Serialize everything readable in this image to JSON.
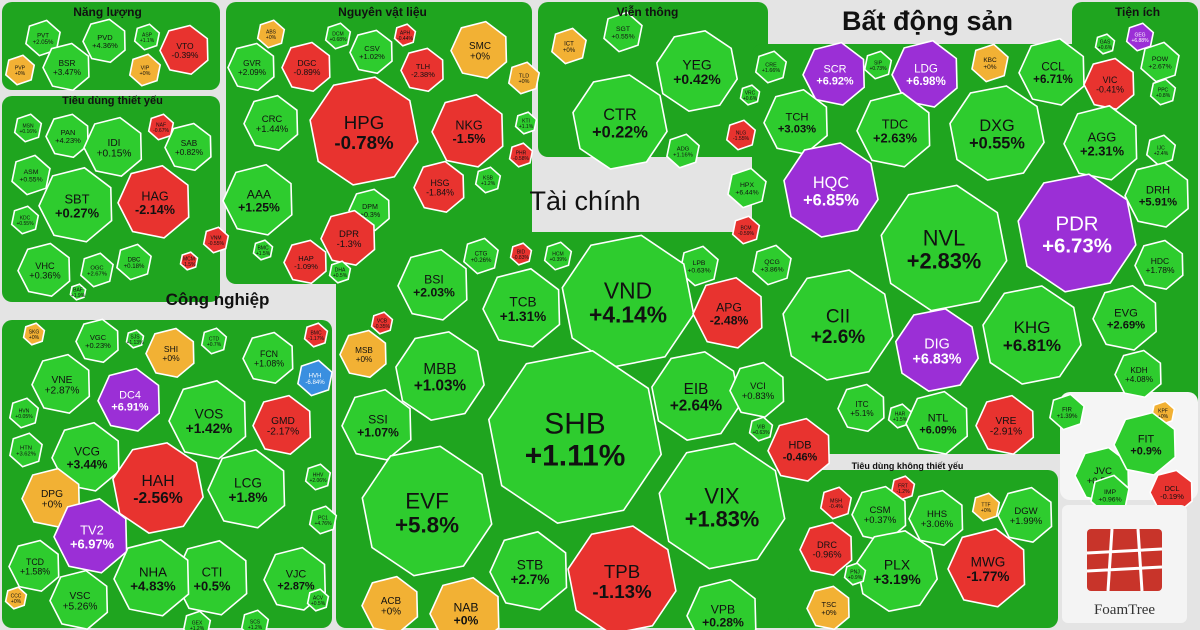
{
  "chart_data": {
    "type": "treemap",
    "title": "",
    "colors": {
      "up": "#2ecc2e",
      "down": "#e8332f",
      "flat": "#f2b134",
      "ceiling": "#9b2fd6",
      "floor": "#3a8fe0"
    },
    "sectors": [
      {
        "name": "Năng lượng",
        "stocks": [
          {
            "ticker": "PVT",
            "change": "+2.05%",
            "value": 2.05
          },
          {
            "ticker": "PVD",
            "change": "+4.36%",
            "value": 4.36
          },
          {
            "ticker": "ASP",
            "change": "+1.1%",
            "value": 1.1
          },
          {
            "ticker": "VTO",
            "change": "-0.39%",
            "value": -0.39
          },
          {
            "ticker": "PVP",
            "change": "+0%",
            "value": 0
          },
          {
            "ticker": "BSR",
            "change": "+3.47%",
            "value": 3.47
          },
          {
            "ticker": "VIP",
            "change": "+0%",
            "value": 0
          }
        ]
      },
      {
        "name": "Nguyên vật liệu",
        "stocks": [
          {
            "ticker": "ABS",
            "change": "+0%",
            "value": 0
          },
          {
            "ticker": "GVR",
            "change": "+2.09%",
            "value": 2.09
          },
          {
            "ticker": "DGC",
            "change": "-0.89%",
            "value": -0.89
          },
          {
            "ticker": "DCM",
            "change": "+0.68%",
            "value": 0.68
          },
          {
            "ticker": "CSV",
            "change": "+1.02%",
            "value": 1.02
          },
          {
            "ticker": "APH",
            "change": "-0.44%",
            "value": -0.44
          },
          {
            "ticker": "SMC",
            "change": "+0%",
            "value": 0
          },
          {
            "ticker": "TLH",
            "change": "-2.38%",
            "value": -2.38
          },
          {
            "ticker": "TLD",
            "change": "+0%",
            "value": 0
          },
          {
            "ticker": "CRC",
            "change": "+1.44%",
            "value": 1.44
          },
          {
            "ticker": "HPG",
            "change": "-0.78%",
            "value": -0.78
          },
          {
            "ticker": "NKG",
            "change": "-1.5%",
            "value": -1.5
          },
          {
            "ticker": "KTI",
            "change": "+1.1%",
            "value": 1.1
          },
          {
            "ticker": "PHR",
            "change": "-0.58%",
            "value": -0.58
          },
          {
            "ticker": "AAA",
            "change": "+1.25%",
            "value": 1.25
          },
          {
            "ticker": "HSG",
            "change": "-1.84%",
            "value": -1.84
          },
          {
            "ticker": "KSB",
            "change": "+1.2%",
            "value": 1.2
          },
          {
            "ticker": "DPM",
            "change": "+0.3%",
            "value": 0.3
          },
          {
            "ticker": "DPR",
            "change": "-1.3%",
            "value": -1.3
          },
          {
            "ticker": "BMC",
            "change": "+1.5%",
            "value": 1.5
          },
          {
            "ticker": "HAP",
            "change": "-1.09%",
            "value": -1.09
          },
          {
            "ticker": "DHA",
            "change": "+0.5%",
            "value": 0.5
          }
        ]
      },
      {
        "name": "Viễn thông",
        "stocks": [
          {
            "ticker": "ICT",
            "change": "+0%",
            "value": 0
          },
          {
            "ticker": "SGT",
            "change": "+0.55%",
            "value": 0.55
          },
          {
            "ticker": "YEG",
            "change": "+0.42%",
            "value": 0.42
          },
          {
            "ticker": "CTR",
            "change": "+0.22%",
            "value": 0.22
          },
          {
            "ticker": "ADG",
            "change": "+1.16%",
            "value": 1.16
          }
        ]
      },
      {
        "name": "Bất động sản",
        "stocks": [
          {
            "ticker": "CRE",
            "change": "+1.66%",
            "value": 1.66
          },
          {
            "ticker": "SCR",
            "change": "+6.92%",
            "value": 6.92
          },
          {
            "ticker": "SIP",
            "change": "+0.73%",
            "value": 0.73
          },
          {
            "ticker": "LDG",
            "change": "+6.98%",
            "value": 6.98
          },
          {
            "ticker": "KBC",
            "change": "+0%",
            "value": 0
          },
          {
            "ticker": "CCL",
            "change": "+6.71%",
            "value": 6.71
          },
          {
            "ticker": "VIC",
            "change": "-0.41%",
            "value": -0.41
          },
          {
            "ticker": "VRC",
            "change": "+0.6%",
            "value": 0.6
          },
          {
            "ticker": "TCH",
            "change": "+3.03%",
            "value": 3.03
          },
          {
            "ticker": "TDC",
            "change": "+2.63%",
            "value": 2.63
          },
          {
            "ticker": "DXG",
            "change": "+0.55%",
            "value": 0.55
          },
          {
            "ticker": "AGG",
            "change": "+2.31%",
            "value": 2.31
          },
          {
            "ticker": "NLG",
            "change": "-1.55%",
            "value": -1.55
          },
          {
            "ticker": "IJC",
            "change": "+2.4%",
            "value": 2.4
          },
          {
            "ticker": "HPX",
            "change": "+6.44%",
            "value": 6.44
          },
          {
            "ticker": "HQC",
            "change": "+6.85%",
            "value": 6.85
          },
          {
            "ticker": "DRH",
            "change": "+5.91%",
            "value": 5.91
          },
          {
            "ticker": "NVL",
            "change": "+2.83%",
            "value": 2.83
          },
          {
            "ticker": "PDR",
            "change": "+6.73%",
            "value": 6.73
          },
          {
            "ticker": "BCM",
            "change": "-0.59%",
            "value": -0.59
          },
          {
            "ticker": "QCG",
            "change": "+3.86%",
            "value": 3.86
          },
          {
            "ticker": "HDC",
            "change": "+1.78%",
            "value": 1.78
          },
          {
            "ticker": "CII",
            "change": "+2.6%",
            "value": 2.6
          },
          {
            "ticker": "KHG",
            "change": "+6.81%",
            "value": 6.81
          },
          {
            "ticker": "EVG",
            "change": "+2.69%",
            "value": 2.69
          },
          {
            "ticker": "DIG",
            "change": "+6.83%",
            "value": 6.83
          },
          {
            "ticker": "KDH",
            "change": "+4.08%",
            "value": 4.08
          },
          {
            "ticker": "ITC",
            "change": "+5.1%",
            "value": 5.1
          },
          {
            "ticker": "HAR",
            "change": "+1.5%",
            "value": 1.5
          },
          {
            "ticker": "NTL",
            "change": "+6.09%",
            "value": 6.09
          },
          {
            "ticker": "VRE",
            "change": "-2.91%",
            "value": -2.91
          },
          {
            "ticker": "FIR",
            "change": "+1.39%",
            "value": 1.39
          },
          {
            "ticker": "KPF",
            "change": "+0%",
            "value": 0
          }
        ]
      },
      {
        "name": "Tiện ích",
        "stocks": [
          {
            "ticker": "GEG",
            "change": "+6.88%",
            "value": 6.88
          },
          {
            "ticker": "GAS",
            "change": "+0.6%",
            "value": 0.6
          },
          {
            "ticker": "POW",
            "change": "+2.67%",
            "value": 2.67
          },
          {
            "ticker": "PPC",
            "change": "+0.8%",
            "value": 0.8
          }
        ]
      },
      {
        "name": "Tiêu dùng thiết yếu",
        "stocks": [
          {
            "ticker": "MSN",
            "change": "+0.16%",
            "value": 0.16
          },
          {
            "ticker": "PAN",
            "change": "+4.23%",
            "value": 4.23
          },
          {
            "ticker": "IDI",
            "change": "+0.15%",
            "value": 0.15
          },
          {
            "ticker": "NAF",
            "change": "-0.67%",
            "value": -0.67
          },
          {
            "ticker": "SAB",
            "change": "+0.82%",
            "value": 0.82
          },
          {
            "ticker": "ASM",
            "change": "+0.55%",
            "value": 0.55
          },
          {
            "ticker": "SBT",
            "change": "+0.27%",
            "value": 0.27
          },
          {
            "ticker": "HAG",
            "change": "-2.14%",
            "value": -2.14
          },
          {
            "ticker": "KDC",
            "change": "+0.55%",
            "value": 0.55
          },
          {
            "ticker": "VNM",
            "change": "-0.55%",
            "value": -0.55
          },
          {
            "ticker": "VHC",
            "change": "+0.36%",
            "value": 0.36
          },
          {
            "ticker": "OGC",
            "change": "+2.67%",
            "value": 2.67
          },
          {
            "ticker": "DBC",
            "change": "+0.18%",
            "value": 0.18
          },
          {
            "ticker": "BAF",
            "change": "+1.9%",
            "value": 1.9
          },
          {
            "ticker": "MCM",
            "change": "-1.5%",
            "value": -1.5
          }
        ]
      },
      {
        "name": "Công nghiệp",
        "stocks": [
          {
            "ticker": "SKG",
            "change": "+0%",
            "value": 0
          },
          {
            "ticker": "VGC",
            "change": "+0.23%",
            "value": 0.23
          },
          {
            "ticker": "SJS",
            "change": "+1.13%",
            "value": 1.13
          },
          {
            "ticker": "CTD",
            "change": "+0.7%",
            "value": 0.7
          },
          {
            "ticker": "BMC",
            "change": "-1.17%",
            "value": -1.17
          },
          {
            "ticker": "SHI",
            "change": "+0%",
            "value": 0
          },
          {
            "ticker": "FCN",
            "change": "+1.08%",
            "value": 1.08
          },
          {
            "ticker": "VNE",
            "change": "+2.87%",
            "value": 2.87
          },
          {
            "ticker": "DC4",
            "change": "+6.91%",
            "value": 6.91
          },
          {
            "ticker": "VOS",
            "change": "+1.42%",
            "value": 1.42
          },
          {
            "ticker": "HVH",
            "change": "-6.84%",
            "value": -6.84
          },
          {
            "ticker": "HVN",
            "change": "+0.05%",
            "value": 0.05
          },
          {
            "ticker": "GMD",
            "change": "-2.17%",
            "value": -2.17
          },
          {
            "ticker": "HTN",
            "change": "+3.62%",
            "value": 3.62
          },
          {
            "ticker": "VCG",
            "change": "+3.44%",
            "value": 3.44
          },
          {
            "ticker": "HAH",
            "change": "-2.56%",
            "value": -2.56
          },
          {
            "ticker": "LCG",
            "change": "+1.8%",
            "value": 1.8
          },
          {
            "ticker": "HHV",
            "change": "+2.06%",
            "value": 2.06
          },
          {
            "ticker": "DPG",
            "change": "+0%",
            "value": 0
          },
          {
            "ticker": "TV2",
            "change": "+6.97%",
            "value": 6.97
          },
          {
            "ticker": "PC1",
            "change": "+4.76%",
            "value": 4.76
          },
          {
            "ticker": "TCD",
            "change": "+1.58%",
            "value": 1.58
          },
          {
            "ticker": "CTI",
            "change": "+0.5%",
            "value": 0.5
          },
          {
            "ticker": "VJC",
            "change": "+2.87%",
            "value": 2.87
          },
          {
            "ticker": "NHA",
            "change": "+4.83%",
            "value": 4.83
          },
          {
            "ticker": "VSC",
            "change": "+5.26%",
            "value": 5.26
          },
          {
            "ticker": "CCC",
            "change": "+0%",
            "value": 0
          },
          {
            "ticker": "GEX",
            "change": "+1.2%",
            "value": 1.2
          },
          {
            "ticker": "SCS",
            "change": "+1.2%",
            "value": 1.2
          },
          {
            "ticker": "ACV",
            "change": "+0.5%",
            "value": 0.5
          }
        ]
      },
      {
        "name": "Tài chính",
        "stocks": [
          {
            "ticker": "CTG",
            "change": "+0.26%",
            "value": 0.26
          },
          {
            "ticker": "BID",
            "change": "-0.83%",
            "value": -0.83
          },
          {
            "ticker": "HCM",
            "change": "+0.39%",
            "value": 0.39
          },
          {
            "ticker": "BVH",
            "change": "-0.2%",
            "value": -0.2
          },
          {
            "ticker": "LPB",
            "change": "+0.63%",
            "value": 0.63
          },
          {
            "ticker": "BSI",
            "change": "+2.03%",
            "value": 2.03
          },
          {
            "ticker": "TCB",
            "change": "+1.31%",
            "value": 1.31
          },
          {
            "ticker": "VND",
            "change": "+4.14%",
            "value": 4.14
          },
          {
            "ticker": "APG",
            "change": "-2.48%",
            "value": -2.48
          },
          {
            "ticker": "VCB",
            "change": "-0.35%",
            "value": -0.35
          },
          {
            "ticker": "MSB",
            "change": "+0%",
            "value": 0
          },
          {
            "ticker": "MBB",
            "change": "+1.03%",
            "value": 1.03
          },
          {
            "ticker": "EIB",
            "change": "+2.64%",
            "value": 2.64
          },
          {
            "ticker": "VCI",
            "change": "+0.83%",
            "value": 0.83
          },
          {
            "ticker": "SSI",
            "change": "+1.07%",
            "value": 1.07
          },
          {
            "ticker": "SHB",
            "change": "+1.11%",
            "value": 1.11
          },
          {
            "ticker": "VIB",
            "change": "+0.63%",
            "value": 0.63
          },
          {
            "ticker": "HDB",
            "change": "-0.46%",
            "value": -0.46
          },
          {
            "ticker": "EVF",
            "change": "+5.8%",
            "value": 5.8
          },
          {
            "ticker": "VIX",
            "change": "+1.83%",
            "value": 1.83
          },
          {
            "ticker": "STB",
            "change": "+2.7%",
            "value": 2.7
          },
          {
            "ticker": "TPB",
            "change": "-1.13%",
            "value": -1.13
          },
          {
            "ticker": "VPB",
            "change": "+0.28%",
            "value": 0.28
          },
          {
            "ticker": "ACB",
            "change": "+0%",
            "value": 0
          },
          {
            "ticker": "NAB",
            "change": "+0%",
            "value": 0
          }
        ]
      },
      {
        "name": "Tiêu dùng không thiết yếu",
        "stocks": [
          {
            "ticker": "MSH",
            "change": "-0.4%",
            "value": -0.4
          },
          {
            "ticker": "FRT",
            "change": "-1.2%",
            "value": -1.2
          },
          {
            "ticker": "CSM",
            "change": "+0.37%",
            "value": 0.37
          },
          {
            "ticker": "HHS",
            "change": "+3.06%",
            "value": 3.06
          },
          {
            "ticker": "TTF",
            "change": "+0%",
            "value": 0
          },
          {
            "ticker": "DGW",
            "change": "+1.99%",
            "value": 1.99
          },
          {
            "ticker": "DRC",
            "change": "-0.96%",
            "value": -0.96
          },
          {
            "ticker": "PLX",
            "change": "+3.19%",
            "value": 3.19
          },
          {
            "ticker": "MWG",
            "change": "-1.77%",
            "value": -1.77
          },
          {
            "ticker": "TSC",
            "change": "+0%",
            "value": 0
          },
          {
            "ticker": "PNJ",
            "change": "+0.9%",
            "value": 0.9
          },
          {
            "ticker": "JVC",
            "change": "+0.58%",
            "value": 0.58
          },
          {
            "ticker": "FIT",
            "change": "+0.9%",
            "value": 0.9
          },
          {
            "ticker": "IMP",
            "change": "+0.96%",
            "value": 0.96
          },
          {
            "ticker": "DCL",
            "change": "-0.19%",
            "value": -0.19
          }
        ]
      }
    ]
  },
  "watermark": "FoamTree"
}
